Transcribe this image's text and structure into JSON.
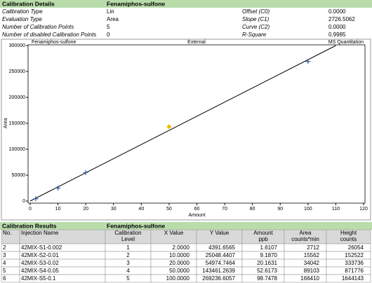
{
  "details": {
    "title": "Calibration Details",
    "compound": "Fenamiphos-sulfone",
    "rows": [
      [
        "Calibration Type",
        "Lin",
        "Offset (C0)",
        "0.0000"
      ],
      [
        "Evaluation Type",
        "Area",
        "Slope (C1)",
        "2726.5062"
      ],
      [
        "Number of Calibration Points",
        "5",
        "Curve (C2)",
        "0.0000"
      ],
      [
        "Number of disabled Calibration Points",
        "0",
        "R-Square",
        "0.9985"
      ]
    ]
  },
  "chart_data": {
    "type": "scatter",
    "title": "Fenamiphos-sulfone",
    "subtitle": "External",
    "annotation": "MS Quantitation",
    "x_label": "Amount",
    "y_label": "Area",
    "x": [
      2,
      10,
      20,
      50,
      100
    ],
    "values": [
      4391.6565,
      25048.4407,
      54974.7464,
      143461.2639,
      269236.6057
    ],
    "point_colors": [
      "#2e5fa8",
      "#2e5fa8",
      "#2e5fa8",
      "#f2b800",
      "#2e5fa8"
    ],
    "markers": [
      "cross",
      "cross",
      "cross",
      "diamond",
      "cross"
    ],
    "line_color": "#000000",
    "xlim": [
      0,
      120
    ],
    "ylim": [
      0,
      300000
    ],
    "xticks": [
      0,
      10,
      20,
      30,
      40,
      50,
      60,
      70,
      80,
      90,
      100,
      110,
      120
    ],
    "yticks": [
      0,
      50000,
      100000,
      150000,
      200000,
      250000,
      300000
    ]
  },
  "results": {
    "title": "Calibration Results",
    "compound": "Fenamiphos-sulfone",
    "columns": [
      [
        "No."
      ],
      [
        "Injection Name"
      ],
      [
        "Calibration",
        "Level"
      ],
      [
        "X Value"
      ],
      [
        "Y Value"
      ],
      [
        "Amount",
        "ppb"
      ],
      [
        "Area",
        "counts*min"
      ],
      [
        "Height",
        "counts"
      ]
    ],
    "rows": [
      [
        "2",
        "42MIX-S1-0.002",
        "1",
        "2.0000",
        "4391.6565",
        "1.6107",
        "2712",
        "26054"
      ],
      [
        "3",
        "42MIX-S2-0.01",
        "2",
        "10.0000",
        "25048.4407",
        "9.1870",
        "15562",
        "152522"
      ],
      [
        "4",
        "42MIX-S3-0.02",
        "3",
        "20.0000",
        "54974.7464",
        "20.1631",
        "34042",
        "333736"
      ],
      [
        "5",
        "42MIX-S4-0.05",
        "4",
        "50.0000",
        "143461.2639",
        "52.6173",
        "89103",
        "871776"
      ],
      [
        "6",
        "42MIX-S5-0.1",
        "5",
        "100.0000",
        "269236.6057",
        "98.7478",
        "166410",
        "1644143"
      ]
    ]
  }
}
